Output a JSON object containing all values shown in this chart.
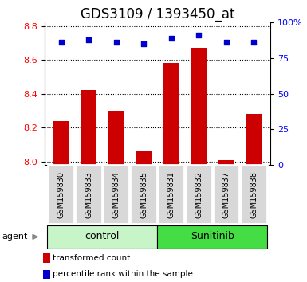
{
  "title": "GDS3109 / 1393450_at",
  "categories": [
    "GSM159830",
    "GSM159833",
    "GSM159834",
    "GSM159835",
    "GSM159831",
    "GSM159832",
    "GSM159837",
    "GSM159838"
  ],
  "bar_values": [
    8.24,
    8.42,
    8.3,
    8.06,
    8.58,
    8.67,
    8.01,
    8.28
  ],
  "percentile_values": [
    86,
    88,
    86,
    85,
    89,
    91,
    86,
    86
  ],
  "bar_color": "#cc0000",
  "dot_color": "#0000cc",
  "ylim_left": [
    7.98,
    8.82
  ],
  "ylim_right": [
    0,
    100
  ],
  "yticks_left": [
    8.0,
    8.2,
    8.4,
    8.6,
    8.8
  ],
  "yticks_right": [
    0,
    25,
    50,
    75,
    100
  ],
  "group_labels": [
    "control",
    "Sunitinib"
  ],
  "group_colors": [
    "#c8f5c8",
    "#44dd44"
  ],
  "agent_label": "agent",
  "legend_items": [
    "transformed count",
    "percentile rank within the sample"
  ],
  "legend_colors": [
    "#cc0000",
    "#0000cc"
  ],
  "bar_width": 0.55,
  "title_fontsize": 12,
  "tick_label_fontsize": 7,
  "legend_fontsize": 7.5,
  "group_fontsize": 9,
  "agent_fontsize": 8
}
